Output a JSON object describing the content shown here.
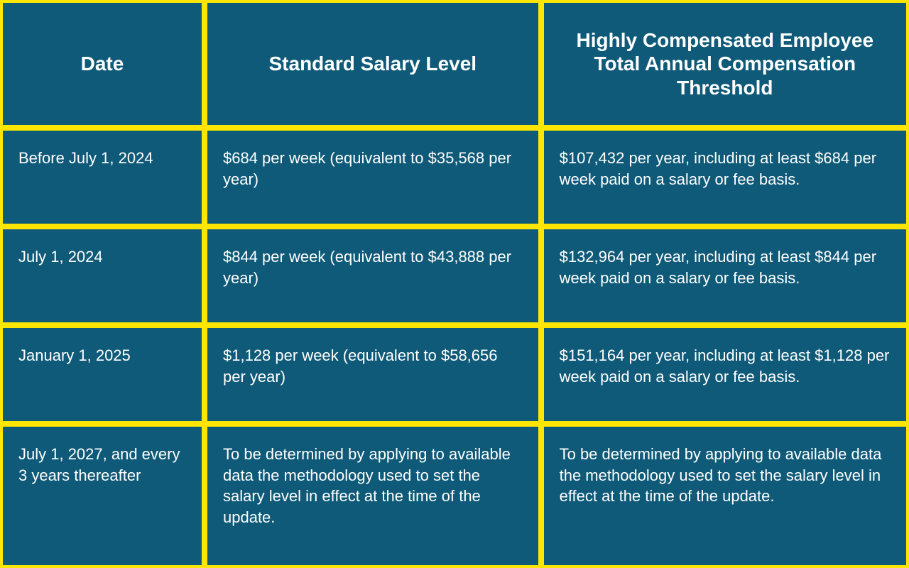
{
  "table": {
    "background_color": "#ffe600",
    "cell_background_color": "#0f5a78",
    "text_color": "#ffffff",
    "border_color": "#ffe600",
    "border_width": 4,
    "header_font_family": "Arial Black",
    "header_font_size": 28,
    "body_font_size": 22,
    "columns": [
      {
        "key": "date",
        "label": "Date",
        "width_pct": 22.5
      },
      {
        "key": "salary",
        "label": "Standard Salary Level",
        "width_pct": 37
      },
      {
        "key": "hce",
        "label": "Highly Compensated Employee Total Annual Compensation Threshold",
        "width_pct": 40.5
      }
    ],
    "rows": [
      {
        "date": "Before July 1, 2024",
        "salary": "$684 per week (equivalent to $35,568 per year)",
        "hce": "$107,432 per year, including at least $684 per week paid on a salary or fee basis."
      },
      {
        "date": "July 1, 2024",
        "salary": "$844 per week (equivalent to $43,888 per year)",
        "hce": "$132,964 per year, including at least $844 per week paid on a salary or fee basis."
      },
      {
        "date": "January 1, 2025",
        "salary": "$1,128 per week (equivalent to $58,656 per year)",
        "hce": "$151,164 per year, including at least $1,128 per week paid on a salary or fee basis."
      },
      {
        "date": "July 1, 2027, and every 3 years thereafter",
        "salary": "To be determined by applying to avail­able data the methodology used to set the salary level in effect at the time of the update.",
        "hce": "To be determined by applying to avail­able data the methodology used to set the salary level in effect at the time of the update."
      }
    ]
  }
}
